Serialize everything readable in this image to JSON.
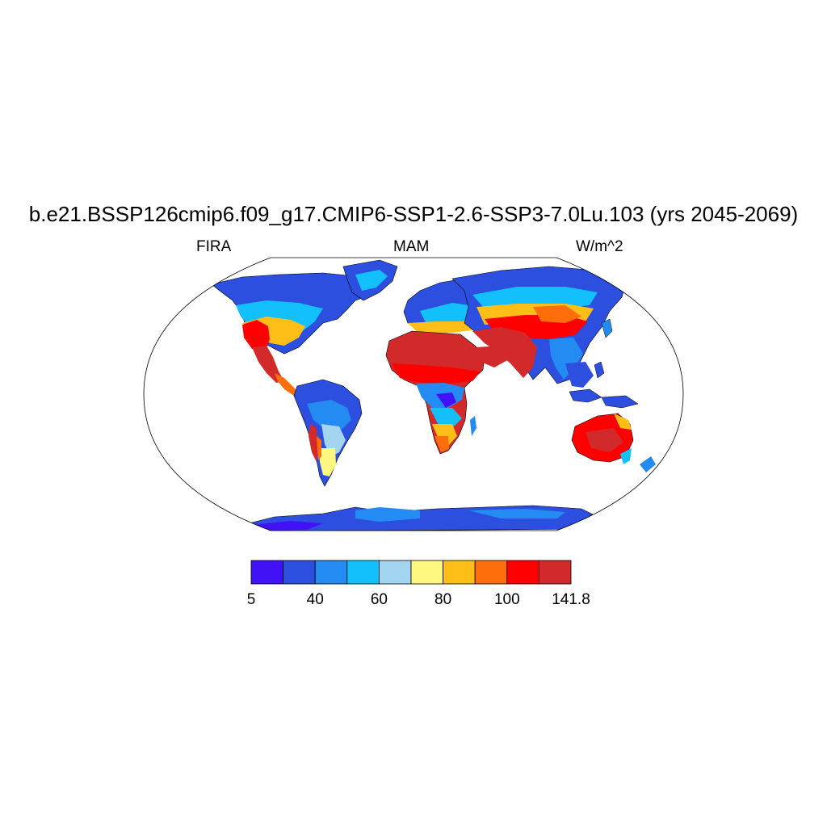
{
  "title": "b.e21.BSSP126cmip6.f09_g17.CMIP6-SSP1-2.6-SSP3-7.0Lu.103 (yrs 2045-2069)",
  "left_string": "FIRA",
  "center_string": "MAM",
  "right_string": "W/m^2",
  "colorbar": {
    "colors": [
      "#4212f7",
      "#2c4fe0",
      "#238bf2",
      "#14c0fc",
      "#a3d5f0",
      "#fef780",
      "#fdbe17",
      "#fe6e0a",
      "#fe0000",
      "#d22a2a"
    ],
    "labels": [
      "5",
      "40",
      "60",
      "80",
      "100",
      "141.8"
    ],
    "label_box_index": [
      0,
      2,
      4,
      6,
      8,
      10
    ]
  },
  "map": {
    "projection": "Robinson",
    "ocean": "#ffffff",
    "coastline": "#000000"
  }
}
